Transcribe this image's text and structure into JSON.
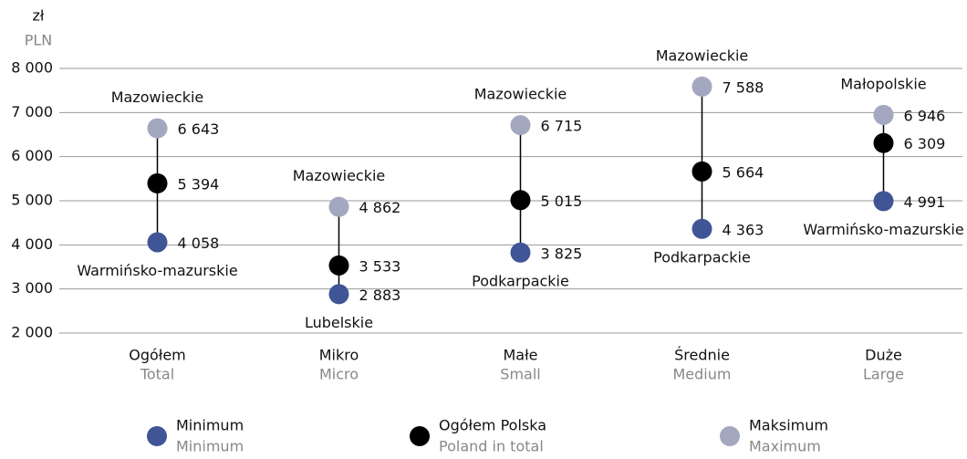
{
  "chart_data": {
    "type": "dot-range",
    "y_label": "zł",
    "y_label_en": "PLN",
    "categories": [
      "Ogółem",
      "Mikro",
      "Małe",
      "Średnie",
      "Duże"
    ],
    "categories_en": [
      "Total",
      "Micro",
      "Small",
      "Medium",
      "Large"
    ],
    "ylim": [
      2000,
      8000
    ],
    "yticks": [
      {
        "value": 2000,
        "label": "2 000"
      },
      {
        "value": 3000,
        "label": "3 000"
      },
      {
        "value": 4000,
        "label": "4 000"
      },
      {
        "value": 5000,
        "label": "5 000"
      },
      {
        "value": 6000,
        "label": "6 000"
      },
      {
        "value": 7000,
        "label": "7 000"
      },
      {
        "value": 8000,
        "label": "8 000"
      }
    ],
    "grid": true,
    "series": [
      {
        "name": "Minimum",
        "name_en": "Minimum",
        "color": "#3f5595",
        "values": [
          4058,
          2883,
          3825,
          4363,
          4991
        ],
        "value_labels": [
          "4 058",
          "2 883",
          "3 825",
          "4 363",
          "4 991"
        ],
        "regions": [
          "Warmińsko-mazurskie",
          "Lubelskie",
          "Podkarpackie",
          "Podkarpackie",
          "Warmińsko-mazurskie"
        ]
      },
      {
        "name": "Ogółem Polska",
        "name_en": "Poland in total",
        "color": "#000000",
        "values": [
          5394,
          3533,
          5015,
          5664,
          6309
        ],
        "value_labels": [
          "5 394",
          "3 533",
          "5 015",
          "5 664",
          "6 309"
        ]
      },
      {
        "name": "Maksimum",
        "name_en": "Maximum",
        "color": "#a3a7c0",
        "values": [
          6643,
          4862,
          6715,
          7588,
          6946
        ],
        "value_labels": [
          "6 643",
          "4 862",
          "6 715",
          "7 588",
          "6 946"
        ],
        "regions": [
          "Mazowieckie",
          "Mazowieckie",
          "Mazowieckie",
          "Mazowieckie",
          "Małopolskie"
        ]
      }
    ]
  }
}
